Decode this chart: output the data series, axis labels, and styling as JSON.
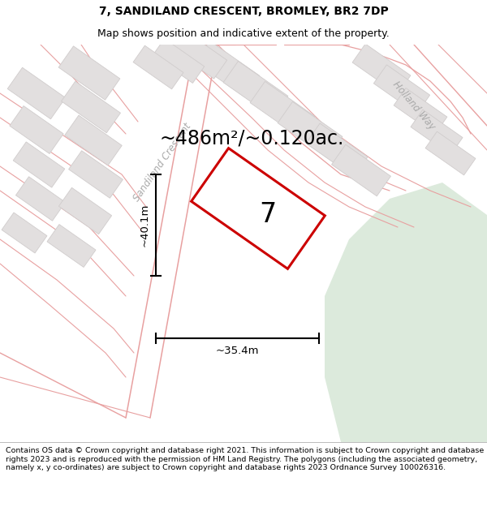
{
  "title_line1": "7, SANDILAND CRESCENT, BROMLEY, BR2 7DP",
  "title_line2": "Map shows position and indicative extent of the property.",
  "footer_text": "Contains OS data © Crown copyright and database right 2021. This information is subject to Crown copyright and database rights 2023 and is reproduced with the permission of HM Land Registry. The polygons (including the associated geometry, namely x, y co-ordinates) are subject to Crown copyright and database rights 2023 Ordnance Survey 100026316.",
  "area_text": "~486m²/~0.120ac.",
  "number_label": "7",
  "dim_height": "~40.1m",
  "dim_width": "~35.4m",
  "title_fontsize": 10,
  "subtitle_fontsize": 9,
  "footer_fontsize": 6.8,
  "area_fontsize": 17,
  "map_bg": "#f7f4f4",
  "plot_color": "#cc0000",
  "road_color": "#e8a0a0",
  "block_color": "#e2dfdf",
  "block_edge_color": "#d0cccc",
  "street_label_1": "Sandiland Crescent",
  "street_label_2": "Holland Way",
  "green_area_color": "#dceadc"
}
